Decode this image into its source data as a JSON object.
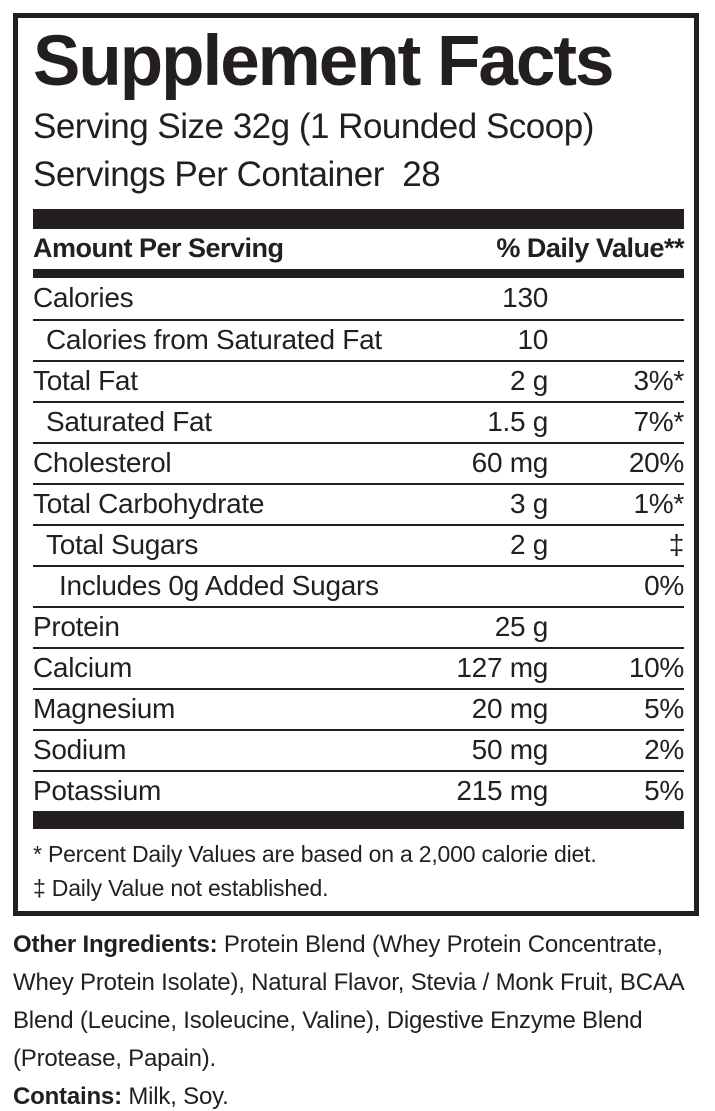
{
  "label": {
    "title": "Supplement Facts",
    "serving_size": "Serving Size 32g (1 Rounded Scoop)",
    "servings_per_container": "Servings Per Container  28",
    "header": {
      "left": "Amount Per Serving",
      "right": "% Daily Value**"
    },
    "rows": [
      {
        "name": "Calories",
        "amount": "130",
        "dv": "",
        "indent": 0
      },
      {
        "name": "Calories from Saturated Fat",
        "amount": "10",
        "dv": "",
        "indent": 1
      },
      {
        "name": "Total Fat",
        "amount": "2 g",
        "dv": "3%*",
        "indent": 0
      },
      {
        "name": "Saturated Fat",
        "amount": "1.5 g",
        "dv": "7%*",
        "indent": 1
      },
      {
        "name": "Cholesterol",
        "amount": "60 mg",
        "dv": "20%",
        "indent": 0
      },
      {
        "name": "Total Carbohydrate",
        "amount": "3 g",
        "dv": "1%*",
        "indent": 0
      },
      {
        "name": "Total Sugars",
        "amount": "2 g",
        "dv": "‡",
        "indent": 1
      },
      {
        "name": "Includes 0g Added Sugars",
        "amount": "",
        "dv": "0%",
        "indent": 2
      },
      {
        "name": "Protein",
        "amount": "25 g",
        "dv": "",
        "indent": 0
      },
      {
        "name": "Calcium",
        "amount": "127 mg",
        "dv": "10%",
        "indent": 0
      },
      {
        "name": "Magnesium",
        "amount": "20 mg",
        "dv": "5%",
        "indent": 0
      },
      {
        "name": "Sodium",
        "amount": "50 mg",
        "dv": "2%",
        "indent": 0
      },
      {
        "name": "Potassium",
        "amount": "215 mg",
        "dv": "5%",
        "indent": 0
      }
    ],
    "footnotes": [
      "* Percent Daily Values are based on a 2,000 calorie diet.",
      "‡ Daily Value not established."
    ],
    "other_ingredients_label": "Other Ingredients:",
    "other_ingredients": " Protein Blend (Whey Protein Concentrate, Whey Protein Isolate), Natural Flavor, Stevia / Monk Fruit, BCAA Blend (Leucine, Isoleucine, Valine), Digestive Enzyme Blend (Protease, Papain).",
    "contains_label": "Contains:",
    "contains": " Milk, Soy.",
    "colors": {
      "ink": "#231f20",
      "background": "#ffffff"
    }
  }
}
